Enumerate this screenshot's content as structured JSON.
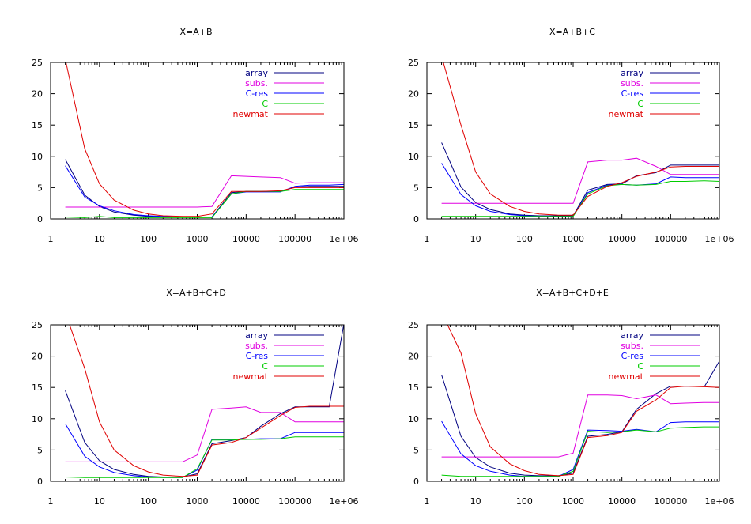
{
  "chart_data": [
    {
      "type": "line",
      "title": "X=A+B",
      "xscale": "log",
      "xlim": [
        1,
        1000000
      ],
      "ylim": [
        0,
        25
      ],
      "xticks": [
        "1",
        "10",
        "100",
        "1000",
        "10000",
        "100000",
        "1e+06"
      ],
      "yticks": [
        "0",
        "5",
        "10",
        "15",
        "20",
        "25"
      ],
      "legend_position": "top-right",
      "x": [
        2,
        5,
        10,
        20,
        50,
        100,
        200,
        500,
        1000,
        2000,
        5000,
        10000,
        20000,
        50000,
        100000,
        200000,
        500000,
        1000000
      ],
      "series": [
        {
          "name": "array",
          "color": "#000080",
          "values": [
            9.5,
            3.8,
            2.0,
            1.1,
            0.6,
            0.4,
            0.3,
            0.3,
            0.3,
            0.3,
            4.2,
            4.4,
            4.4,
            4.4,
            5.1,
            5.2,
            5.2,
            5.2
          ]
        },
        {
          "name": "subs.",
          "color": "#e000e0",
          "values": [
            1.9,
            1.9,
            1.9,
            1.9,
            1.9,
            1.9,
            1.9,
            1.9,
            1.9,
            2.0,
            6.9,
            6.8,
            6.7,
            6.6,
            5.7,
            5.8,
            5.8,
            5.8
          ]
        },
        {
          "name": "C-res",
          "color": "#0000ff",
          "values": [
            8.5,
            3.5,
            2.1,
            1.3,
            0.7,
            0.5,
            0.4,
            0.3,
            0.3,
            0.3,
            4.0,
            4.3,
            4.3,
            4.3,
            5.2,
            5.4,
            5.4,
            5.5
          ]
        },
        {
          "name": "C",
          "color": "#00cc00",
          "values": [
            0.3,
            0.2,
            0.4,
            0.2,
            0.2,
            0.2,
            0.2,
            0.2,
            0.2,
            0.2,
            4.0,
            4.4,
            4.4,
            4.4,
            4.7,
            4.7,
            4.7,
            4.7
          ]
        },
        {
          "name": "newmat",
          "color": "#e00000",
          "values": [
            25.5,
            11.2,
            5.6,
            3.0,
            1.4,
            0.8,
            0.5,
            0.4,
            0.4,
            0.8,
            4.4,
            4.4,
            4.4,
            4.5,
            5.0,
            5.0,
            5.0,
            5.0
          ]
        }
      ]
    },
    {
      "type": "line",
      "title": "X=A+B+C",
      "xscale": "log",
      "xlim": [
        1,
        1000000
      ],
      "ylim": [
        0,
        25
      ],
      "xticks": [
        "1",
        "10",
        "100",
        "1000",
        "10000",
        "100000",
        "1e+06"
      ],
      "yticks": [
        "0",
        "5",
        "10",
        "15",
        "20",
        "25"
      ],
      "legend_position": "top-right",
      "x": [
        2,
        5,
        10,
        20,
        50,
        100,
        200,
        500,
        1000,
        2000,
        5000,
        10000,
        20000,
        50000,
        100000,
        200000,
        500000,
        1000000
      ],
      "series": [
        {
          "name": "array",
          "color": "#000080",
          "values": [
            12.2,
            5.1,
            2.6,
            1.5,
            0.8,
            0.6,
            0.5,
            0.5,
            0.5,
            4.6,
            5.5,
            5.6,
            6.9,
            7.4,
            8.6,
            8.6,
            8.6,
            8.6
          ]
        },
        {
          "name": "subs.",
          "color": "#e000e0",
          "values": [
            2.5,
            2.5,
            2.5,
            2.5,
            2.5,
            2.5,
            2.5,
            2.5,
            2.5,
            9.1,
            9.4,
            9.4,
            9.7,
            8.4,
            7.1,
            7.1,
            7.1,
            7.1
          ]
        },
        {
          "name": "C-res",
          "color": "#0000ff",
          "values": [
            8.9,
            3.9,
            2.1,
            1.2,
            0.7,
            0.5,
            0.4,
            0.4,
            0.4,
            4.2,
            5.4,
            5.5,
            5.4,
            5.6,
            6.7,
            6.6,
            6.6,
            6.6
          ]
        },
        {
          "name": "C",
          "color": "#00cc00",
          "values": [
            0.4,
            0.4,
            0.4,
            0.4,
            0.4,
            0.4,
            0.4,
            0.4,
            0.4,
            4.0,
            5.3,
            5.5,
            5.4,
            5.5,
            6.0,
            6.0,
            6.1,
            6.0
          ]
        },
        {
          "name": "newmat",
          "color": "#e00000",
          "values": [
            26.0,
            15.0,
            7.5,
            4.0,
            2.0,
            1.2,
            0.8,
            0.6,
            0.6,
            3.6,
            5.2,
            5.8,
            6.8,
            7.5,
            8.3,
            8.4,
            8.4,
            8.4
          ]
        }
      ]
    },
    {
      "type": "line",
      "title": "X=A+B+C+D",
      "xscale": "log",
      "xlim": [
        1,
        1000000
      ],
      "ylim": [
        0,
        25
      ],
      "xticks": [
        "1",
        "10",
        "100",
        "1000",
        "10000",
        "100000",
        "1e+06"
      ],
      "yticks": [
        "0",
        "5",
        "10",
        "15",
        "20",
        "25"
      ],
      "legend_position": "top-right",
      "x": [
        2,
        5,
        10,
        20,
        50,
        100,
        200,
        500,
        1000,
        2000,
        5000,
        10000,
        20000,
        50000,
        100000,
        200000,
        500000,
        1000000
      ],
      "series": [
        {
          "name": "array",
          "color": "#000080",
          "values": [
            14.5,
            6.2,
            3.3,
            1.9,
            1.1,
            0.8,
            0.7,
            0.7,
            1.2,
            6.0,
            6.5,
            7.0,
            8.8,
            10.8,
            11.9,
            11.9,
            11.9,
            25.2
          ]
        },
        {
          "name": "subs.",
          "color": "#e000e0",
          "values": [
            3.1,
            3.1,
            3.1,
            3.1,
            3.1,
            3.1,
            3.1,
            3.1,
            4.2,
            11.5,
            11.7,
            11.9,
            11.0,
            11.0,
            9.5,
            9.5,
            9.5,
            9.5
          ]
        },
        {
          "name": "C-res",
          "color": "#0000ff",
          "values": [
            9.2,
            4.0,
            2.3,
            1.4,
            0.9,
            0.7,
            0.6,
            0.6,
            1.8,
            6.7,
            6.7,
            6.7,
            6.8,
            6.8,
            7.8,
            7.8,
            7.8,
            7.8
          ]
        },
        {
          "name": "C",
          "color": "#00cc00",
          "values": [
            0.7,
            0.6,
            0.6,
            0.6,
            0.6,
            0.6,
            0.6,
            0.6,
            2.0,
            6.6,
            6.6,
            6.7,
            6.7,
            6.8,
            7.1,
            7.1,
            7.1,
            7.1
          ]
        },
        {
          "name": "newmat",
          "color": "#e00000",
          "values": [
            27.0,
            18.0,
            9.5,
            5.0,
            2.5,
            1.5,
            1.0,
            0.8,
            1.0,
            5.8,
            6.2,
            7.0,
            8.5,
            10.5,
            11.8,
            12.0,
            12.0,
            12.0
          ]
        }
      ]
    },
    {
      "type": "line",
      "title": "X=A+B+C+D+E",
      "xscale": "log",
      "xlim": [
        1,
        1000000
      ],
      "ylim": [
        0,
        25
      ],
      "xticks": [
        "1",
        "10",
        "100",
        "1000",
        "10000",
        "100000",
        "1e+06"
      ],
      "yticks": [
        "0",
        "5",
        "10",
        "15",
        "20",
        "25"
      ],
      "legend_position": "top-right",
      "x": [
        2,
        5,
        10,
        20,
        50,
        100,
        200,
        500,
        1000,
        2000,
        5000,
        10000,
        20000,
        50000,
        100000,
        200000,
        500000,
        1000000
      ],
      "series": [
        {
          "name": "array",
          "color": "#000080",
          "values": [
            17.0,
            7.2,
            3.8,
            2.3,
            1.3,
            1.0,
            0.9,
            0.9,
            1.3,
            7.2,
            7.5,
            7.9,
            11.5,
            14.0,
            15.2,
            15.2,
            15.2,
            19.2
          ]
        },
        {
          "name": "subs.",
          "color": "#e000e0",
          "values": [
            3.9,
            3.9,
            3.9,
            3.9,
            3.9,
            3.9,
            3.9,
            3.9,
            4.5,
            13.8,
            13.8,
            13.7,
            13.2,
            13.8,
            12.4,
            12.5,
            12.6,
            12.6
          ]
        },
        {
          "name": "C-res",
          "color": "#0000ff",
          "values": [
            9.6,
            4.4,
            2.5,
            1.6,
            1.0,
            0.8,
            0.8,
            0.8,
            1.9,
            8.2,
            8.1,
            8.0,
            8.3,
            7.9,
            9.4,
            9.5,
            9.5,
            9.5
          ]
        },
        {
          "name": "C",
          "color": "#00cc00",
          "values": [
            1.0,
            0.8,
            0.8,
            0.8,
            0.8,
            0.8,
            0.8,
            0.8,
            1.6,
            8.0,
            7.8,
            7.9,
            8.2,
            7.9,
            8.5,
            8.6,
            8.7,
            8.7
          ]
        },
        {
          "name": "newmat",
          "color": "#e00000",
          "values": [
            27.0,
            20.5,
            10.8,
            5.5,
            2.8,
            1.7,
            1.1,
            0.9,
            1.1,
            7.0,
            7.3,
            7.8,
            11.2,
            13.0,
            15.0,
            15.2,
            15.1,
            15.0
          ]
        }
      ]
    }
  ]
}
